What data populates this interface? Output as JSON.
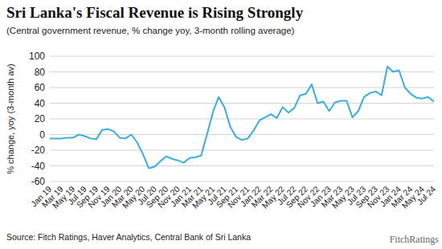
{
  "chart_data": {
    "type": "line",
    "title": "Sri Lanka's Fiscal Revenue is Rising Strongly",
    "subtitle": "(Central government revenue, % change yoy, 3-month rolling average)",
    "y_label": "% change, yoy (3-month av)",
    "source": "Source: Fitch Ratings, Haver Analytics, Central Bank of Sri Lanka",
    "logo": "FitchRatings",
    "categories": [
      "Jan 19",
      null,
      "Mar 19",
      null,
      "May 19",
      null,
      "Jul 19",
      null,
      "Sep 19",
      null,
      "Nov 19",
      null,
      "Jan 20",
      null,
      "Mar 20",
      null,
      "May 20",
      null,
      "Jul 20",
      null,
      "Sep 20",
      null,
      "Nov 20",
      null,
      "Jan 21",
      null,
      "Mar 21",
      null,
      "May 21",
      null,
      "Jul 21",
      null,
      "Sep 21",
      null,
      "Nov 21",
      null,
      "Jan 22",
      null,
      "Mar 22",
      null,
      "May 22",
      null,
      "Jul 22",
      null,
      "Sep 22",
      null,
      "Nov 22",
      null,
      "Jan 23",
      null,
      "Mar 23",
      null,
      "May 23",
      null,
      "Jul 23",
      null,
      "Sep 23",
      null,
      "Nov 23",
      null,
      "Jan 24",
      null,
      "Mar 24",
      null,
      "May 24",
      null,
      "Jul 24"
    ],
    "values": [
      -5,
      -5,
      -5,
      -4,
      -4,
      0,
      -2,
      -5,
      -6,
      6,
      7,
      4,
      -4,
      -5,
      0,
      -10,
      -25,
      -43,
      -41,
      -34,
      -28,
      -31,
      -33,
      -36,
      -30,
      -29,
      -27,
      0,
      28,
      48,
      35,
      10,
      -3,
      -7,
      -5,
      5,
      18,
      22,
      26,
      21,
      35,
      28,
      34,
      50,
      52,
      64,
      40,
      42,
      30,
      41,
      43,
      43,
      22,
      30,
      48,
      53,
      55,
      50,
      87,
      80,
      82,
      60,
      52,
      47,
      46,
      48,
      42
    ],
    "color": "#3aaee0",
    "ylim": [
      -60,
      100
    ],
    "yticks": [
      -60,
      -40,
      -20,
      0,
      20,
      40,
      60,
      80,
      100
    ],
    "grid": true
  }
}
